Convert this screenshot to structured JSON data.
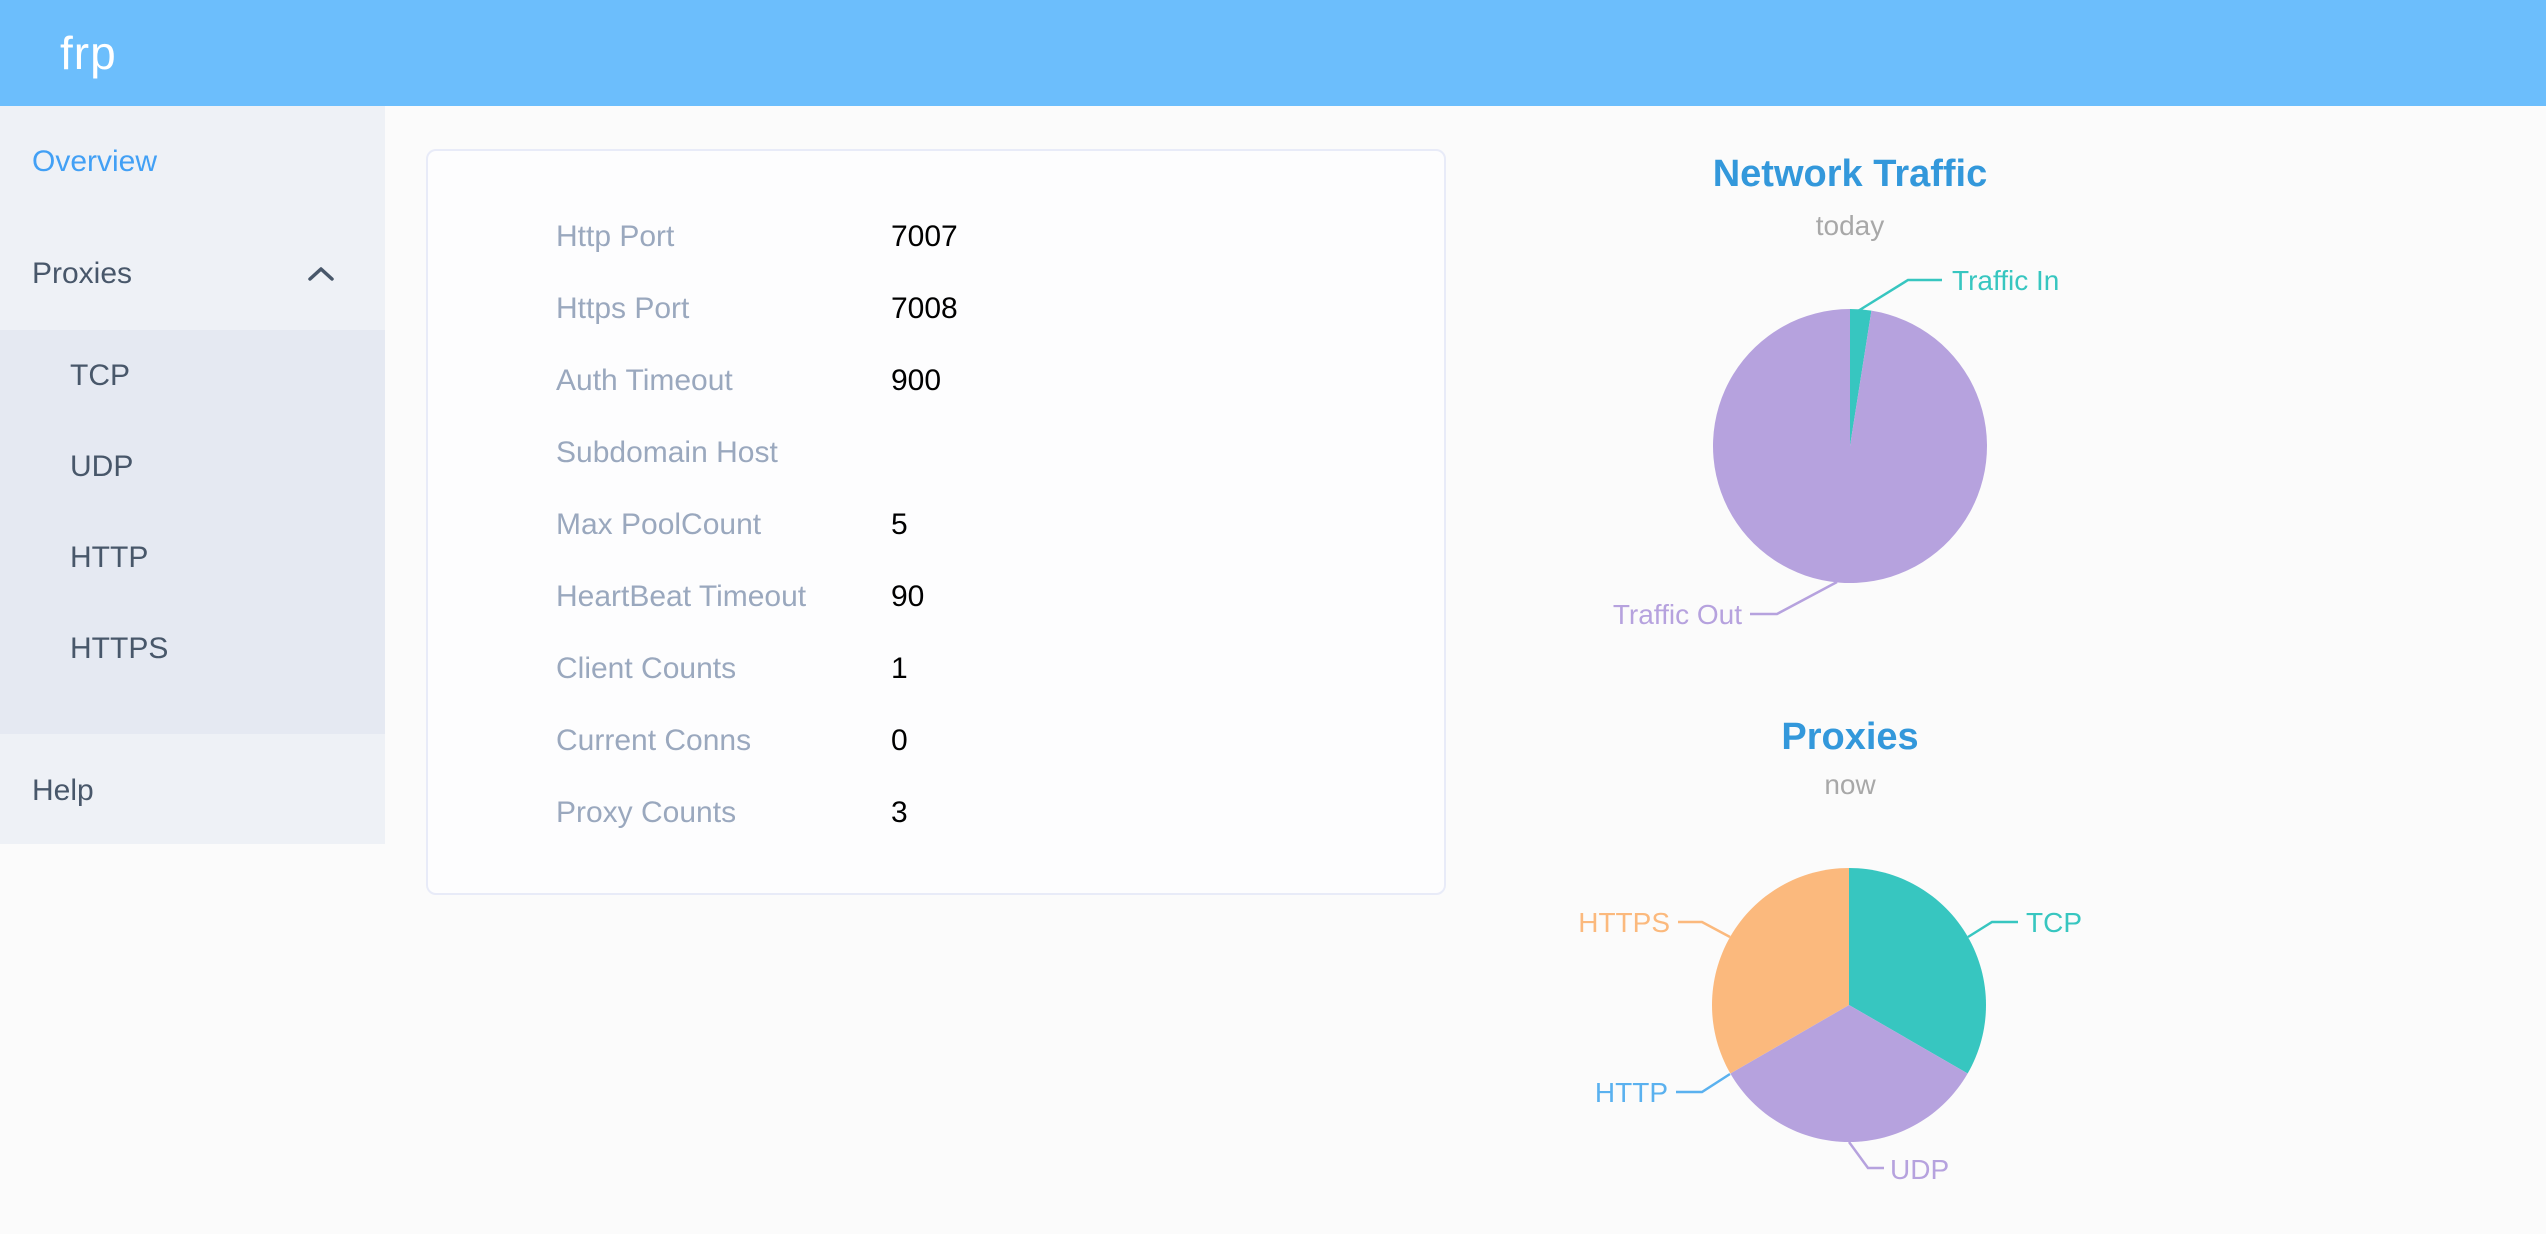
{
  "header": {
    "logo": "frp"
  },
  "sidebar": {
    "items": [
      {
        "label": "Overview",
        "active": true
      },
      {
        "label": "Proxies",
        "expanded": true
      }
    ],
    "submenu": [
      "TCP",
      "UDP",
      "HTTP",
      "HTTPS"
    ],
    "help": "Help"
  },
  "server_info": {
    "rows": [
      {
        "label": "Http Port",
        "value": "7007"
      },
      {
        "label": "Https Port",
        "value": "7008"
      },
      {
        "label": "Auth Timeout",
        "value": "900"
      },
      {
        "label": "Subdomain Host",
        "value": ""
      },
      {
        "label": "Max PoolCount",
        "value": "5"
      },
      {
        "label": "HeartBeat Timeout",
        "value": "90"
      },
      {
        "label": "Client Counts",
        "value": "1"
      },
      {
        "label": "Current Conns",
        "value": "0"
      },
      {
        "label": "Proxy Counts",
        "value": "3"
      }
    ]
  },
  "chart_data": [
    {
      "type": "pie",
      "title": "Network Traffic",
      "subtitle": "today",
      "legend_position": "none",
      "grid": false,
      "data": [
        {
          "name": "Traffic In",
          "value": 2.5
        },
        {
          "name": "Traffic Out",
          "value": 97.5
        }
      ],
      "unit": "percent-of-circle (estimated from slice angles)",
      "colors": [
        "#37c6c0",
        "#b6a2de"
      ]
    },
    {
      "type": "pie",
      "title": "Proxies",
      "subtitle": "now",
      "legend_position": "none",
      "grid": false,
      "data": [
        {
          "name": "TCP",
          "value": 1
        },
        {
          "name": "UDP",
          "value": 1
        },
        {
          "name": "HTTP",
          "value": 0
        },
        {
          "name": "HTTPS",
          "value": 1
        }
      ],
      "unit": "proxy count",
      "colors": [
        "#37c6c0",
        "#b6a2de",
        "#5ab1ef",
        "#fbb97d"
      ]
    }
  ],
  "colors": {
    "header_bg": "#6cbefc",
    "sidebar_bg": "#eef1f6",
    "submenu_bg": "#e5e9f2",
    "menu_text": "#48576a",
    "active_menu_text": "#42a0f5",
    "page_bg": "#fbfbfb",
    "card_border": "#e8ebf8",
    "info_label_gray": "#9aa8be",
    "info_value": "#000000",
    "chart_title_blue": "#3398db",
    "chart_subtitle_gray": "#a8a8a8"
  }
}
